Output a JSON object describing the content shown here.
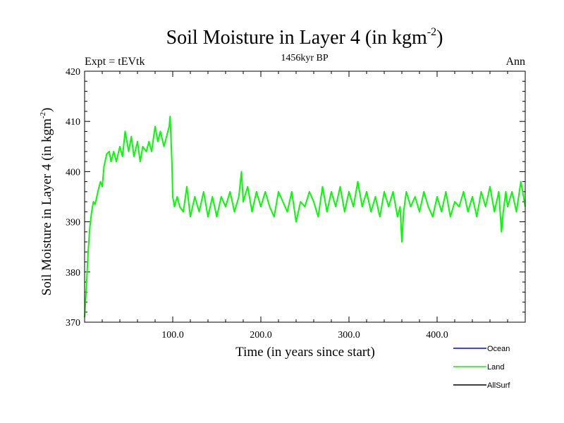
{
  "chart_data": {
    "type": "line",
    "title": "Soil Moisture in Layer 4 (in kgm",
    "title_superscript": "-2",
    "title_suffix": ")",
    "subtitle_left": "Expt = tEVtk",
    "subtitle_center": "1456kyr BP",
    "subtitle_right": "Ann",
    "xlabel": "Time (in years since start)",
    "ylabel": "Soil Moisture in Layer 4 (in kgm",
    "ylabel_superscript": "-2",
    "ylabel_suffix": ")",
    "xlim": [
      0,
      500
    ],
    "ylim": [
      370,
      420
    ],
    "xticks": [
      100,
      200,
      300,
      400
    ],
    "xtick_labels": [
      "100.0",
      "200.0",
      "300.0",
      "400.0"
    ],
    "yticks": [
      370,
      380,
      390,
      400,
      410,
      420
    ],
    "ytick_labels": [
      "370",
      "380",
      "390",
      "400",
      "410",
      "420"
    ],
    "series": [
      {
        "name": "Ocean",
        "color": "#0000ff",
        "x": [],
        "values": []
      },
      {
        "name": "Land",
        "color": "#00ff00",
        "x": [
          0,
          2,
          4,
          6,
          8,
          10,
          12,
          15,
          18,
          20,
          22,
          25,
          28,
          30,
          33,
          36,
          40,
          43,
          46,
          50,
          53,
          56,
          60,
          63,
          66,
          70,
          73,
          76,
          80,
          83,
          86,
          90,
          93,
          96,
          97,
          99,
          100,
          102,
          105,
          108,
          112,
          116,
          120,
          125,
          130,
          135,
          140,
          145,
          150,
          155,
          160,
          165,
          170,
          175,
          178,
          180,
          185,
          190,
          195,
          200,
          205,
          210,
          215,
          220,
          225,
          230,
          235,
          240,
          245,
          250,
          255,
          260,
          265,
          270,
          275,
          280,
          285,
          290,
          295,
          300,
          305,
          310,
          315,
          320,
          325,
          330,
          335,
          340,
          345,
          350,
          355,
          358,
          360,
          362,
          365,
          370,
          375,
          380,
          385,
          390,
          395,
          400,
          405,
          410,
          415,
          420,
          425,
          430,
          435,
          440,
          445,
          450,
          455,
          460,
          465,
          470,
          473,
          475,
          478,
          480,
          485,
          490,
          495,
          497,
          500
        ],
        "values": [
          371,
          377,
          384,
          389,
          392,
          394,
          393.5,
          396,
          398,
          397,
          401,
          403.5,
          404,
          402,
          404,
          402,
          405,
          403,
          408,
          404,
          407,
          403,
          406,
          402,
          405,
          404,
          406,
          404,
          409,
          406,
          408,
          405,
          407,
          409,
          411,
          402,
          395,
          393,
          395,
          393,
          392,
          397,
          391,
          395,
          392,
          396,
          391,
          395,
          391,
          395,
          393,
          396,
          392,
          395,
          400,
          394,
          397,
          392,
          396,
          393,
          396,
          393,
          391,
          396,
          394,
          392,
          396,
          390,
          394,
          393,
          396,
          394,
          391,
          397,
          392,
          396,
          393,
          397,
          392,
          396,
          393,
          398,
          393,
          396,
          392,
          395,
          391,
          396,
          393,
          396,
          391,
          393,
          386,
          392,
          396,
          393,
          395,
          392,
          396,
          393,
          391,
          395,
          392,
          396,
          391,
          394,
          393,
          396,
          392,
          395,
          391,
          396,
          393,
          397,
          392,
          396,
          388,
          392,
          396,
          393,
          396,
          392,
          398,
          396,
          393
        ]
      },
      {
        "name": "AllSurf",
        "color": "#000000",
        "x": [],
        "values": []
      }
    ],
    "legend_position": "bottom-right"
  }
}
